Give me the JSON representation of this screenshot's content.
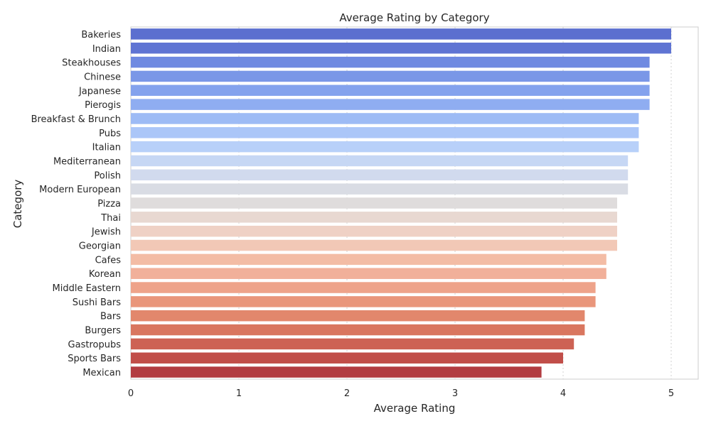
{
  "chart_data": {
    "type": "bar",
    "orientation": "horizontal",
    "title": "Average Rating by Category",
    "xlabel": "Average Rating",
    "ylabel": "Category",
    "xlim": [
      0,
      5.25
    ],
    "xticks": [
      0,
      1,
      2,
      3,
      4,
      5
    ],
    "grid": true,
    "palette": "coolwarm",
    "categories": [
      "Bakeries",
      "Indian",
      "Steakhouses",
      "Chinese",
      "Japanese",
      "Pierogis",
      "Breakfast & Brunch",
      "Pubs",
      "Italian",
      "Mediterranean",
      "Polish",
      "Modern European",
      "Pizza",
      "Thai",
      "Jewish",
      "Georgian",
      "Cafes",
      "Korean",
      "Middle Eastern",
      "Sushi Bars",
      "Bars",
      "Burgers",
      "Gastropubs",
      "Sports Bars",
      "Mexican"
    ],
    "values": [
      5.0,
      5.0,
      4.8,
      4.8,
      4.8,
      4.8,
      4.7,
      4.7,
      4.7,
      4.6,
      4.6,
      4.6,
      4.5,
      4.5,
      4.5,
      4.5,
      4.4,
      4.4,
      4.3,
      4.3,
      4.2,
      4.2,
      4.1,
      4.0,
      3.8
    ],
    "colors": [
      "#5b6fcf",
      "#5f74d3",
      "#6f8ae1",
      "#7a97e7",
      "#84a2ed",
      "#8fadf1",
      "#9dbbf5",
      "#abc6f8",
      "#b8d0f9",
      "#c6d7f4",
      "#d1daee",
      "#d9dce4",
      "#dfdcdc",
      "#e8d8d1",
      "#efd1c5",
      "#f2c8b6",
      "#f3bca5",
      "#f1b09a",
      "#eea38a",
      "#e9967b",
      "#e2876c",
      "#d9765f",
      "#cd6254",
      "#c14e49",
      "#b23c41"
    ]
  }
}
